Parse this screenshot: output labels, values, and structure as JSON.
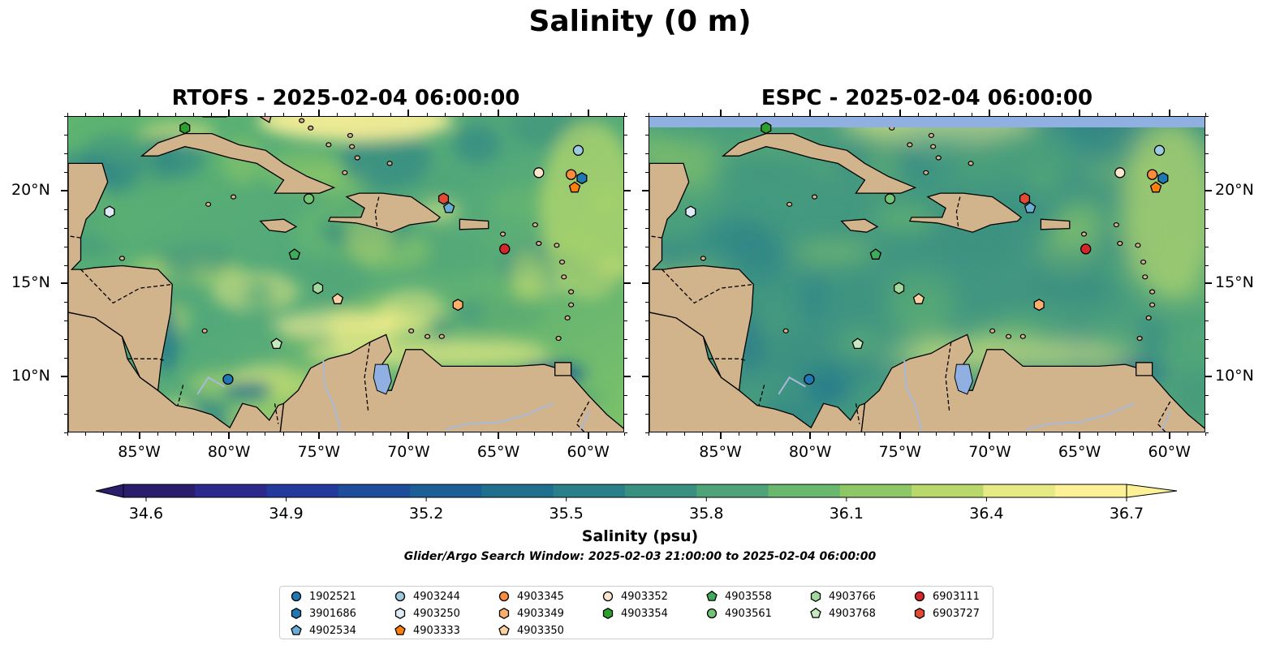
{
  "figure": {
    "title": "Salinity (0 m)",
    "subtitle": "Glider/Argo Search Window: 2025-02-03 21:00:00 to 2025-02-04 06:00:00"
  },
  "panels": [
    {
      "title": "RTOFS - 2025-02-04 06:00:00",
      "model": "RTOFS"
    },
    {
      "title": "ESPC - 2025-02-04 06:00:00",
      "model": "ESPC"
    }
  ],
  "map_extent": {
    "lon_min": -89,
    "lon_max": -58,
    "lat_min": 7,
    "lat_max": 24
  },
  "axes": {
    "x_ticks": [
      "85°W",
      "80°W",
      "75°W",
      "70°W",
      "65°W",
      "60°W"
    ],
    "x_tick_values": [
      -85,
      -80,
      -75,
      -70,
      -65,
      -60
    ],
    "y_ticks": [
      "10°N",
      "15°N",
      "20°N"
    ],
    "y_tick_values": [
      10,
      15,
      20
    ]
  },
  "colorbar": {
    "label": "Salinity (psu)",
    "min": 34.6,
    "max": 36.7,
    "ticks": [
      "34.6",
      "34.9",
      "35.2",
      "35.5",
      "35.8",
      "36.1",
      "36.4",
      "36.7"
    ],
    "tick_values": [
      34.6,
      34.9,
      35.2,
      35.5,
      35.8,
      36.1,
      36.4,
      36.7
    ],
    "extend": "both",
    "colors": [
      "#2a1d6b",
      "#2b2a8c",
      "#233a9c",
      "#1d4d9b",
      "#1c5f96",
      "#1f708f",
      "#2a8088",
      "#3a9080",
      "#4ea478",
      "#6ab86e",
      "#8ec866",
      "#b8d86c",
      "#e6ea84",
      "#fdf198"
    ]
  },
  "colors": {
    "land": "#d2b48c",
    "ocean_deep": "#2a1d6b",
    "river": "#a8b8d8",
    "lake": "#8fb0e0",
    "espc_mask": "#8fb0e0"
  },
  "legend": {
    "columns": [
      [
        {
          "id": "1902521",
          "marker": "circle",
          "color": "#1f77b4"
        },
        {
          "id": "3901686",
          "marker": "hexagon",
          "color": "#1f77b4"
        },
        {
          "id": "4902534",
          "marker": "pentagon",
          "color": "#6aaed6"
        }
      ],
      [
        {
          "id": "4903244",
          "marker": "circle",
          "color": "#9ecae1"
        },
        {
          "id": "4903250",
          "marker": "hexagon",
          "color": "#deebf7"
        },
        {
          "id": "4903333",
          "marker": "pentagon",
          "color": "#ff7f0e"
        }
      ],
      [
        {
          "id": "4903345",
          "marker": "circle",
          "color": "#fd8d3c"
        },
        {
          "id": "4903349",
          "marker": "hexagon",
          "color": "#fdae6b"
        },
        {
          "id": "4903350",
          "marker": "pentagon",
          "color": "#fdd0a2"
        }
      ],
      [
        {
          "id": "4903352",
          "marker": "circle",
          "color": "#fee6ce"
        },
        {
          "id": "4903354",
          "marker": "hexagon",
          "color": "#2ca02c"
        }
      ],
      [
        {
          "id": "4903558",
          "marker": "pentagon",
          "color": "#41ab5d"
        },
        {
          "id": "4903561",
          "marker": "circle",
          "color": "#74c476"
        }
      ],
      [
        {
          "id": "4903766",
          "marker": "hexagon",
          "color": "#a1d99b"
        },
        {
          "id": "4903768",
          "marker": "pentagon",
          "color": "#c7e9c0"
        }
      ],
      [
        {
          "id": "6903111",
          "marker": "circle",
          "color": "#d62728"
        },
        {
          "id": "6903727",
          "marker": "hexagon",
          "color": "#e34a33"
        }
      ]
    ]
  },
  "floats": [
    {
      "id": "1902521",
      "lon": -80.1,
      "lat": 9.9
    },
    {
      "id": "3901686",
      "lon": -60.4,
      "lat": 20.7
    },
    {
      "id": "4902534",
      "lon": -67.8,
      "lat": 19.1
    },
    {
      "id": "4903244",
      "lon": -60.6,
      "lat": 22.2
    },
    {
      "id": "4903250",
      "lon": -86.7,
      "lat": 18.9
    },
    {
      "id": "4903333",
      "lon": -60.8,
      "lat": 20.2
    },
    {
      "id": "4903345",
      "lon": -61.0,
      "lat": 20.9
    },
    {
      "id": "4903349",
      "lon": -67.3,
      "lat": 13.9
    },
    {
      "id": "4903350",
      "lon": -74.0,
      "lat": 14.2
    },
    {
      "id": "4903352",
      "lon": -62.8,
      "lat": 21.0
    },
    {
      "id": "4903354",
      "lon": -82.5,
      "lat": 23.4
    },
    {
      "id": "4903558",
      "lon": -76.4,
      "lat": 16.6
    },
    {
      "id": "4903561",
      "lon": -75.6,
      "lat": 19.6
    },
    {
      "id": "4903766",
      "lon": -75.1,
      "lat": 14.8
    },
    {
      "id": "4903768",
      "lon": -77.4,
      "lat": 11.8
    },
    {
      "id": "6903111",
      "lon": -64.7,
      "lat": 16.9
    },
    {
      "id": "6903727",
      "lon": -68.1,
      "lat": 19.6
    }
  ]
}
